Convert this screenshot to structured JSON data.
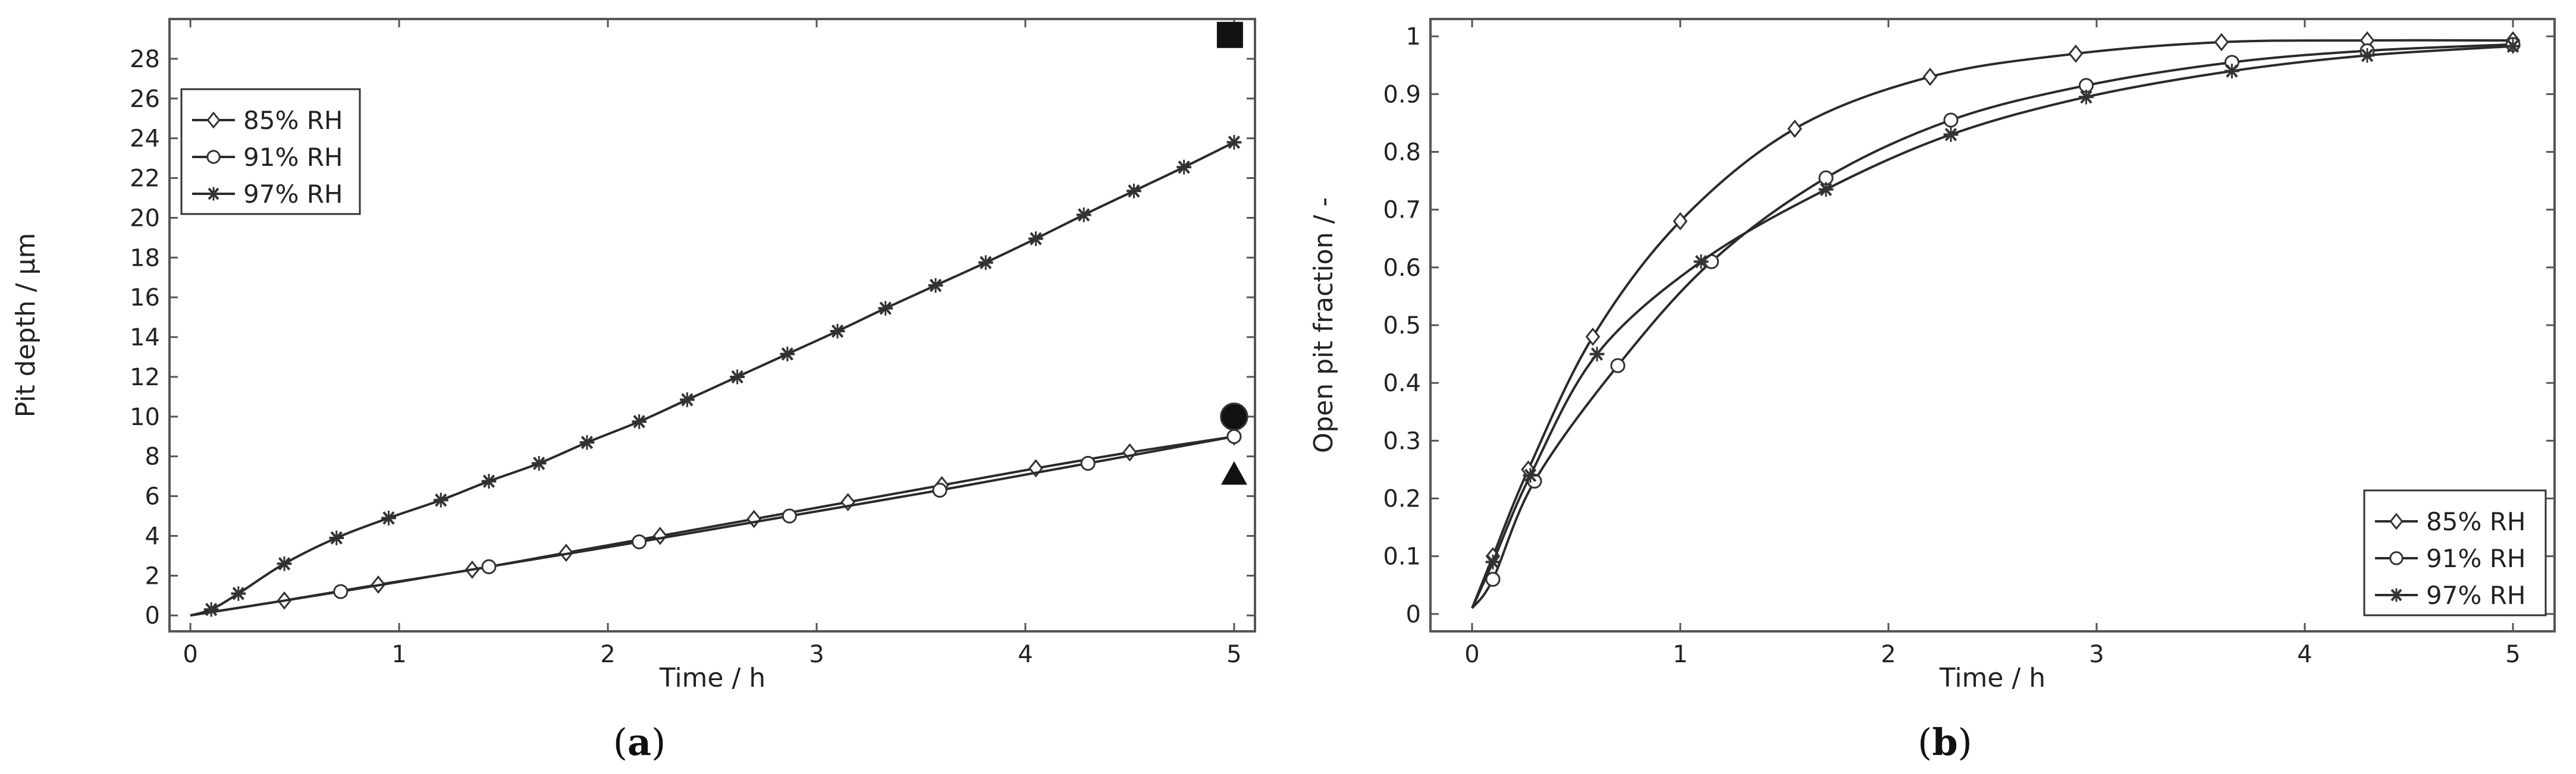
{
  "chart_data": [
    {
      "panel_label": "(a)",
      "panel_letter": "a",
      "type": "line",
      "title": "",
      "xlabel": "Time / h",
      "ylabel": "Pit depth / µm",
      "xlim": [
        -0.1,
        5.1
      ],
      "ylim": [
        -0.8,
        30
      ],
      "xticks": [
        0,
        1,
        2,
        3,
        4,
        5
      ],
      "yticks": [
        0,
        2,
        4,
        6,
        8,
        10,
        12,
        14,
        16,
        18,
        20,
        22,
        24,
        26,
        28
      ],
      "grid": false,
      "legend_position": "top-left",
      "series": [
        {
          "name": "85% RH",
          "marker": "diamond",
          "x": [
            0,
            0.45,
            0.9,
            1.35,
            1.8,
            2.25,
            2.7,
            3.15,
            3.6,
            4.05,
            4.5,
            5.0
          ],
          "y": [
            0,
            0.75,
            1.55,
            2.3,
            3.15,
            4.0,
            4.85,
            5.7,
            6.55,
            7.4,
            8.2,
            9.0
          ]
        },
        {
          "name": "91% RH",
          "marker": "circle",
          "x": [
            0,
            0.72,
            1.43,
            2.15,
            2.87,
            3.59,
            4.3,
            5.0
          ],
          "y": [
            0,
            1.2,
            2.45,
            3.7,
            5.0,
            6.3,
            7.65,
            9.0
          ]
        },
        {
          "name": "97% RH",
          "marker": "star",
          "x": [
            0,
            0.1,
            0.23,
            0.45,
            0.7,
            0.95,
            1.2,
            1.43,
            1.67,
            1.9,
            2.15,
            2.38,
            2.62,
            2.86,
            3.1,
            3.33,
            3.57,
            3.81,
            4.05,
            4.28,
            4.52,
            4.76,
            5.0
          ],
          "y": [
            0,
            0.3,
            1.1,
            2.6,
            3.9,
            4.9,
            5.8,
            6.75,
            7.65,
            8.7,
            9.75,
            10.85,
            12.0,
            13.15,
            14.3,
            15.45,
            16.6,
            17.75,
            18.95,
            20.15,
            21.35,
            22.55,
            23.8
          ]
        }
      ],
      "extra_markers": [
        {
          "shape": "square",
          "x": 4.98,
          "y": 29.2
        },
        {
          "shape": "circle",
          "x": 5.0,
          "y": 10.0
        },
        {
          "shape": "triangle",
          "x": 5.0,
          "y": 7.1
        }
      ]
    },
    {
      "panel_label": "(b)",
      "panel_letter": "b",
      "type": "line",
      "title": "",
      "xlabel": "Time / h",
      "ylabel": "Open pit fraction / -",
      "xlim": [
        -0.2,
        5.2
      ],
      "ylim": [
        -0.03,
        1.03
      ],
      "xticks": [
        0,
        1,
        2,
        3,
        4,
        5
      ],
      "yticks": [
        0,
        0.1,
        0.2,
        0.3,
        0.4,
        0.5,
        0.6,
        0.7,
        0.8,
        0.9,
        1
      ],
      "grid": false,
      "legend_position": "bottom-right",
      "series": [
        {
          "name": "85% RH",
          "marker": "diamond",
          "x": [
            0,
            0.1,
            0.27,
            0.58,
            1.0,
            1.55,
            2.2,
            2.9,
            3.6,
            4.3,
            5.0
          ],
          "y": [
            0.01,
            0.1,
            0.25,
            0.48,
            0.68,
            0.84,
            0.93,
            0.97,
            0.99,
            0.993,
            0.993
          ]
        },
        {
          "name": "91% RH",
          "marker": "circle",
          "x": [
            0,
            0.1,
            0.3,
            0.7,
            1.15,
            1.7,
            2.3,
            2.95,
            3.65,
            4.3,
            5.0
          ],
          "y": [
            0.01,
            0.06,
            0.23,
            0.43,
            0.61,
            0.755,
            0.855,
            0.915,
            0.955,
            0.975,
            0.986
          ]
        },
        {
          "name": "97% RH",
          "marker": "star",
          "x": [
            0,
            0.1,
            0.28,
            0.6,
            1.1,
            1.7,
            2.3,
            2.95,
            3.65,
            4.3,
            5.0
          ],
          "y": [
            0.01,
            0.09,
            0.24,
            0.45,
            0.61,
            0.735,
            0.83,
            0.895,
            0.94,
            0.967,
            0.983
          ]
        }
      ]
    }
  ]
}
